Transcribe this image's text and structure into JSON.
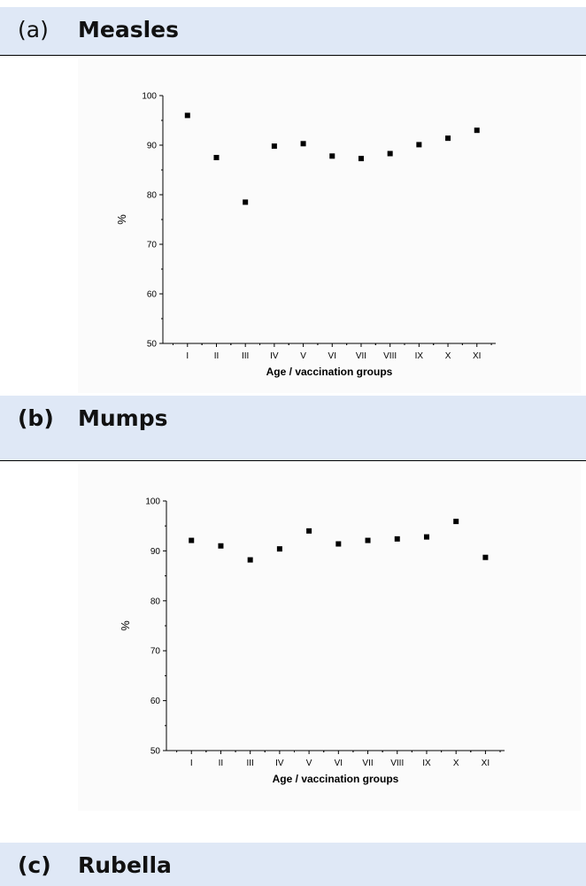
{
  "sections": [
    {
      "label": "(a)",
      "title": "Measles"
    },
    {
      "label": "(b)",
      "title": "Mumps"
    },
    {
      "label": "(c)",
      "title": "Rubella"
    }
  ],
  "chart_data": [
    {
      "type": "scatter",
      "title": "",
      "xlabel": "Age / vaccination groups",
      "ylabel": "%",
      "categories": [
        "I",
        "II",
        "III",
        "IV",
        "V",
        "VI",
        "VII",
        "VIII",
        "IX",
        "X",
        "XI"
      ],
      "values": [
        96.0,
        87.5,
        78.5,
        89.8,
        90.3,
        87.8,
        87.3,
        88.3,
        90.1,
        91.4,
        93.0
      ],
      "yticks": [
        50,
        60,
        70,
        80,
        90,
        100
      ],
      "ylim": [
        50,
        100
      ],
      "grid": false,
      "marker": "square",
      "color": "#000000"
    },
    {
      "type": "scatter",
      "title": "",
      "xlabel": "Age / vaccination groups",
      "ylabel": "%",
      "categories": [
        "I",
        "II",
        "III",
        "IV",
        "V",
        "VI",
        "VII",
        "VIII",
        "IX",
        "X",
        "XI"
      ],
      "values": [
        92.1,
        91.0,
        88.2,
        90.4,
        94.0,
        91.4,
        92.1,
        92.4,
        92.8,
        95.9,
        88.7
      ],
      "yticks": [
        50,
        60,
        70,
        80,
        90,
        100
      ],
      "ylim": [
        50,
        100
      ],
      "grid": false,
      "marker": "square",
      "color": "#000000"
    }
  ]
}
